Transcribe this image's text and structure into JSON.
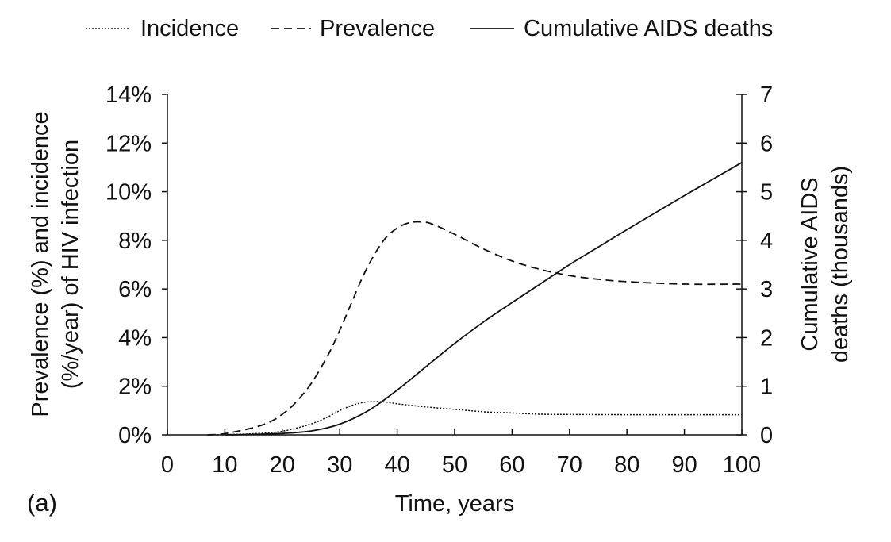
{
  "chart_data": {
    "type": "line",
    "panel_label": "(a)",
    "xlabel": "Time, years",
    "ylabel_left_line1": "Prevalence (%) and incidence",
    "ylabel_left_line2": "(%/year) of HIV infection",
    "ylabel_right_line1": "Cumulative AIDS",
    "ylabel_right_line2": "deaths (thousands)",
    "xlim": [
      0,
      100
    ],
    "ylim_left": [
      0,
      14
    ],
    "ylim_right": [
      0,
      7
    ],
    "x_ticks": [
      0,
      10,
      20,
      30,
      40,
      50,
      60,
      70,
      80,
      90,
      100
    ],
    "y_left_ticks": [
      "0%",
      "2%",
      "4%",
      "6%",
      "8%",
      "10%",
      "12%",
      "14%"
    ],
    "y_right_ticks": [
      "0",
      "1",
      "2",
      "3",
      "4",
      "5",
      "6",
      "7"
    ],
    "legend_position": "top",
    "grid": false,
    "series": [
      {
        "name": "Incidence",
        "axis": "left",
        "style": "dotted",
        "x": [
          7,
          10,
          15,
          20,
          25,
          28,
          30,
          32,
          34,
          36,
          38,
          40,
          45,
          50,
          55,
          60,
          65,
          70,
          80,
          90,
          100
        ],
        "y": [
          0,
          0.01,
          0.05,
          0.15,
          0.45,
          0.75,
          1.0,
          1.2,
          1.33,
          1.37,
          1.35,
          1.28,
          1.15,
          1.05,
          0.95,
          0.9,
          0.85,
          0.84,
          0.83,
          0.83,
          0.83
        ]
      },
      {
        "name": "Prevalence",
        "axis": "left",
        "style": "dashed",
        "x": [
          7,
          10,
          15,
          18,
          20,
          22,
          25,
          28,
          30,
          32,
          34,
          36,
          38,
          40,
          42,
          44,
          46,
          50,
          55,
          60,
          65,
          70,
          75,
          80,
          90,
          100
        ],
        "y": [
          0,
          0.05,
          0.3,
          0.55,
          0.85,
          1.25,
          2.1,
          3.3,
          4.3,
          5.4,
          6.5,
          7.4,
          8.1,
          8.5,
          8.72,
          8.76,
          8.68,
          8.25,
          7.65,
          7.15,
          6.8,
          6.55,
          6.4,
          6.3,
          6.2,
          6.2
        ]
      },
      {
        "name": "Cumulative AIDS deaths",
        "axis": "right",
        "style": "solid",
        "x": [
          10,
          15,
          20,
          25,
          30,
          35,
          40,
          45,
          50,
          55,
          60,
          65,
          70,
          75,
          80,
          85,
          90,
          95,
          100
        ],
        "y": [
          0,
          0.01,
          0.03,
          0.08,
          0.22,
          0.5,
          0.92,
          1.4,
          1.88,
          2.32,
          2.72,
          3.11,
          3.5,
          3.86,
          4.22,
          4.57,
          4.92,
          5.26,
          5.6
        ]
      }
    ]
  }
}
